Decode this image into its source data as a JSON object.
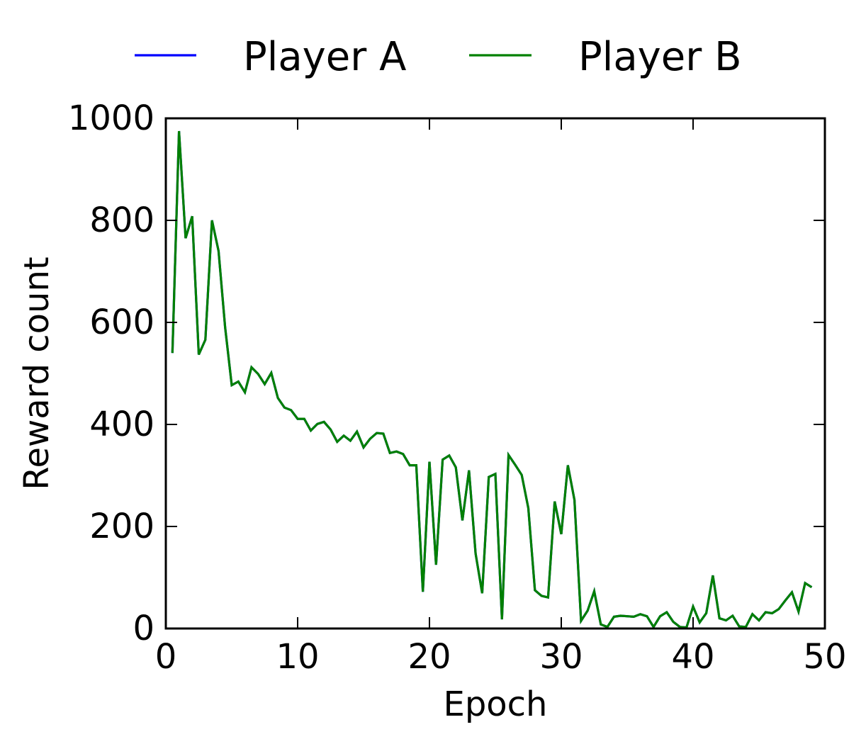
{
  "chart_data": {
    "type": "line",
    "xlabel": "Epoch",
    "ylabel": "Reward count",
    "xlim": [
      0,
      50
    ],
    "ylim": [
      0,
      1000
    ],
    "xticks": [
      0,
      10,
      20,
      30,
      40,
      50
    ],
    "yticks": [
      0,
      200,
      400,
      600,
      800,
      1000
    ],
    "xtick_labels": [
      "0",
      "10",
      "20",
      "30",
      "40",
      "50"
    ],
    "ytick_labels": [
      "0",
      "200",
      "400",
      "600",
      "800",
      "1000"
    ],
    "grid": false,
    "legend_position": "top",
    "series": [
      {
        "name": "Player A",
        "color": "#0000ff",
        "x": [
          0.5,
          1,
          1.5,
          2,
          2.5,
          3,
          3.5,
          4,
          4.5,
          5,
          5.5,
          6,
          6.5,
          7,
          7.5,
          8,
          8.5,
          9,
          9.5,
          10,
          10.5,
          11,
          11.5,
          12,
          12.5,
          13,
          13.5,
          14,
          14.5,
          15,
          15.5,
          16,
          16.5,
          17,
          17.5,
          18,
          18.5,
          19,
          19.5,
          20,
          20.5,
          21,
          21.5,
          22,
          22.5,
          23,
          23.5,
          24,
          24.5,
          25,
          25.5,
          26,
          26.5,
          27,
          27.5,
          28,
          28.5,
          29,
          29.5,
          30,
          30.5,
          31,
          31.5,
          32,
          32.5,
          33,
          33.5,
          34,
          34.5,
          35,
          35.5,
          36,
          36.5,
          37,
          37.5,
          38,
          38.5,
          39,
          39.5,
          40,
          40.5,
          41,
          41.5,
          42,
          42.5,
          43,
          43.5,
          44,
          44.5,
          45,
          45.5,
          46,
          46.5,
          47,
          47.5,
          48,
          48.5,
          49
        ],
        "y": [
          540,
          975,
          765,
          808,
          537,
          566,
          800,
          740,
          590,
          477,
          484,
          463,
          512,
          499,
          479,
          501,
          452,
          433,
          428,
          411,
          411,
          388,
          401,
          405,
          390,
          366,
          378,
          368,
          386,
          355,
          372,
          383,
          382,
          344,
          347,
          342,
          320,
          320,
          72,
          327,
          125,
          331,
          339,
          316,
          212,
          310,
          147,
          69,
          297,
          303,
          18,
          340,
          321,
          301,
          236,
          75,
          64,
          61,
          249,
          185,
          320,
          252,
          15,
          35,
          73,
          8,
          3,
          23,
          25,
          24,
          23,
          28,
          24,
          3,
          24,
          32,
          13,
          3,
          2,
          43,
          12,
          30,
          104,
          20,
          16,
          25,
          4,
          3,
          28,
          16,
          32,
          30,
          38,
          55,
          71,
          33,
          89,
          81
        ]
      },
      {
        "name": "Player B",
        "color": "#008000",
        "x": [
          0.5,
          1,
          1.5,
          2,
          2.5,
          3,
          3.5,
          4,
          4.5,
          5,
          5.5,
          6,
          6.5,
          7,
          7.5,
          8,
          8.5,
          9,
          9.5,
          10,
          10.5,
          11,
          11.5,
          12,
          12.5,
          13,
          13.5,
          14,
          14.5,
          15,
          15.5,
          16,
          16.5,
          17,
          17.5,
          18,
          18.5,
          19,
          19.5,
          20,
          20.5,
          21,
          21.5,
          22,
          22.5,
          23,
          23.5,
          24,
          24.5,
          25,
          25.5,
          26,
          26.5,
          27,
          27.5,
          28,
          28.5,
          29,
          29.5,
          30,
          30.5,
          31,
          31.5,
          32,
          32.5,
          33,
          33.5,
          34,
          34.5,
          35,
          35.5,
          36,
          36.5,
          37,
          37.5,
          38,
          38.5,
          39,
          39.5,
          40,
          40.5,
          41,
          41.5,
          42,
          42.5,
          43,
          43.5,
          44,
          44.5,
          45,
          45.5,
          46,
          46.5,
          47,
          47.5,
          48,
          48.5,
          49
        ],
        "y": [
          540,
          975,
          765,
          808,
          537,
          566,
          800,
          740,
          590,
          477,
          484,
          463,
          512,
          499,
          479,
          501,
          452,
          433,
          428,
          411,
          411,
          388,
          401,
          405,
          390,
          366,
          378,
          368,
          386,
          355,
          372,
          383,
          382,
          344,
          347,
          342,
          320,
          320,
          72,
          327,
          125,
          331,
          339,
          316,
          212,
          310,
          147,
          69,
          297,
          303,
          18,
          340,
          321,
          301,
          236,
          75,
          64,
          61,
          249,
          185,
          320,
          252,
          15,
          35,
          73,
          8,
          3,
          23,
          25,
          24,
          23,
          28,
          24,
          3,
          24,
          32,
          13,
          3,
          2,
          43,
          12,
          30,
          104,
          20,
          16,
          25,
          4,
          3,
          28,
          16,
          32,
          30,
          38,
          55,
          71,
          33,
          89,
          81
        ]
      }
    ]
  }
}
